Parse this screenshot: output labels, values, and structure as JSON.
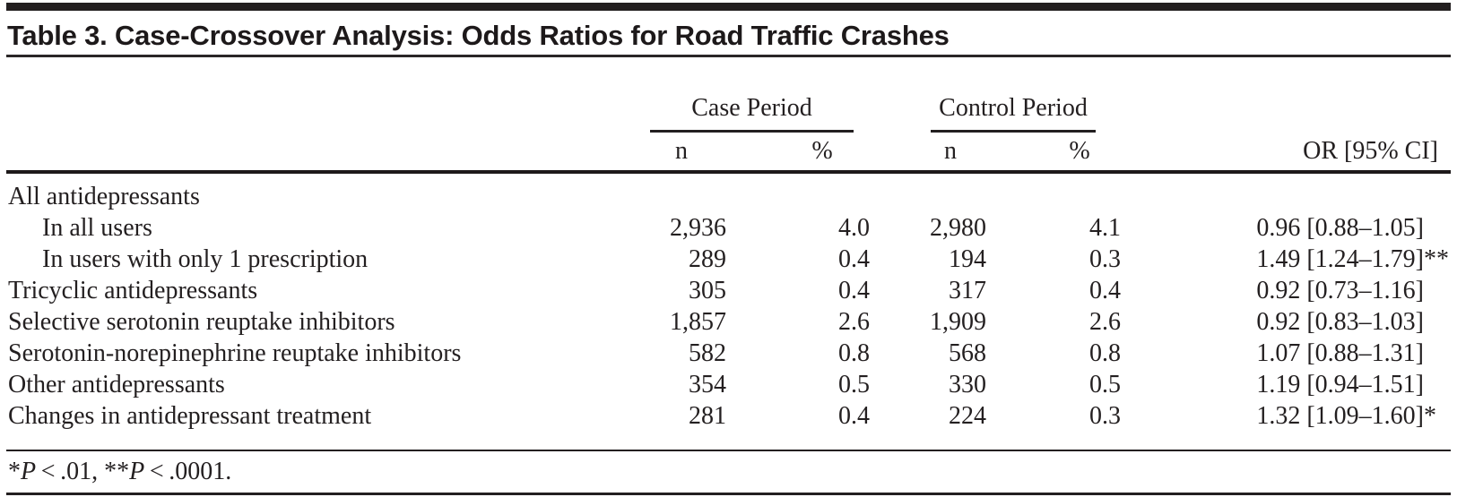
{
  "page": {
    "background": "#ffffff",
    "text_color": "#231f20",
    "rule_color": "#231f20"
  },
  "title": "Table 3. Case-Crossover Analysis: Odds Ratios for Road Traffic Crashes",
  "table": {
    "col_groups": [
      {
        "label": "Case Period"
      },
      {
        "label": "Control Period"
      }
    ],
    "subheaders": {
      "case_n": "n",
      "case_pct": "%",
      "ctrl_n": "n",
      "ctrl_pct": "%",
      "or": "OR [95% CI]"
    },
    "rows": [
      {
        "label": "All antidepressants",
        "case_n": "",
        "case_pct": "",
        "ctrl_n": "",
        "ctrl_pct": "",
        "or": "",
        "marker": ""
      },
      {
        "label": "In all users",
        "case_n": "2,936",
        "case_pct": "4.0",
        "ctrl_n": "2,980",
        "ctrl_pct": "4.1",
        "or": "0.96 [0.88–1.05]",
        "marker": ""
      },
      {
        "label": "In users with only 1 prescription",
        "case_n": "289",
        "case_pct": "0.4",
        "ctrl_n": "194",
        "ctrl_pct": "0.3",
        "or": "1.49 [1.24–1.79]",
        "marker": "**"
      },
      {
        "label": "Tricyclic antidepressants",
        "case_n": "305",
        "case_pct": "0.4",
        "ctrl_n": "317",
        "ctrl_pct": "0.4",
        "or": "0.92 [0.73–1.16]",
        "marker": ""
      },
      {
        "label": "Selective serotonin reuptake inhibitors",
        "case_n": "1,857",
        "case_pct": "2.6",
        "ctrl_n": "1,909",
        "ctrl_pct": "2.6",
        "or": "0.92 [0.83–1.03]",
        "marker": ""
      },
      {
        "label": "Serotonin-norepinephrine reuptake inhibitors",
        "case_n": "582",
        "case_pct": "0.8",
        "ctrl_n": "568",
        "ctrl_pct": "0.8",
        "or": "1.07 [0.88–1.31]",
        "marker": ""
      },
      {
        "label": "Other antidepressants",
        "case_n": "354",
        "case_pct": "0.5",
        "ctrl_n": "330",
        "ctrl_pct": "0.5",
        "or": "1.19 [0.94–1.51]",
        "marker": ""
      },
      {
        "label": "Changes in antidepressant treatment",
        "case_n": "281",
        "case_pct": "0.4",
        "ctrl_n": "224",
        "ctrl_pct": "0.3",
        "or": "1.32 [1.09–1.60]",
        "marker": "*"
      }
    ],
    "footnote": {
      "marker1": "*",
      "p1": "P",
      "cond1": " < .01, ",
      "marker2": "**",
      "p2": "P",
      "cond2": " < .0001."
    }
  }
}
